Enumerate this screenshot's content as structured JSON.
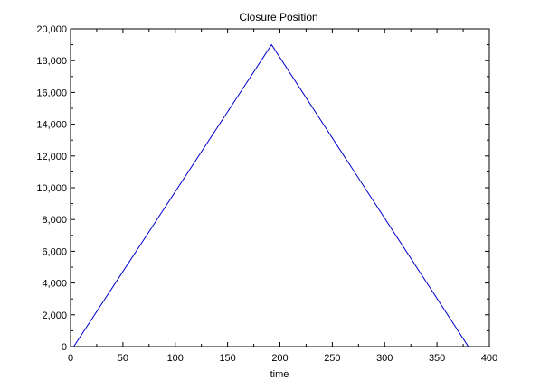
{
  "chart_data": {
    "type": "line",
    "title": "Closure Position",
    "xlabel": "time",
    "ylabel": "",
    "xlim": [
      0,
      400
    ],
    "ylim": [
      0,
      20000
    ],
    "xticks": [
      0,
      50,
      100,
      150,
      200,
      250,
      300,
      350,
      400
    ],
    "xtick_labels": [
      "0",
      "50",
      "100",
      "150",
      "200",
      "250",
      "300",
      "350",
      "400"
    ],
    "yticks": [
      0,
      2000,
      4000,
      6000,
      8000,
      10000,
      12000,
      14000,
      16000,
      18000,
      20000
    ],
    "ytick_labels": [
      "0",
      "2,000",
      "4,000",
      "6,000",
      "8,000",
      "10,000",
      "12,000",
      "14,000",
      "16,000",
      "18,000",
      "20,000"
    ],
    "grid": false,
    "line_color": "#0000cc",
    "series": [
      {
        "x": [
          3,
          192,
          380
        ],
        "y": [
          0,
          19000,
          0
        ]
      }
    ]
  }
}
